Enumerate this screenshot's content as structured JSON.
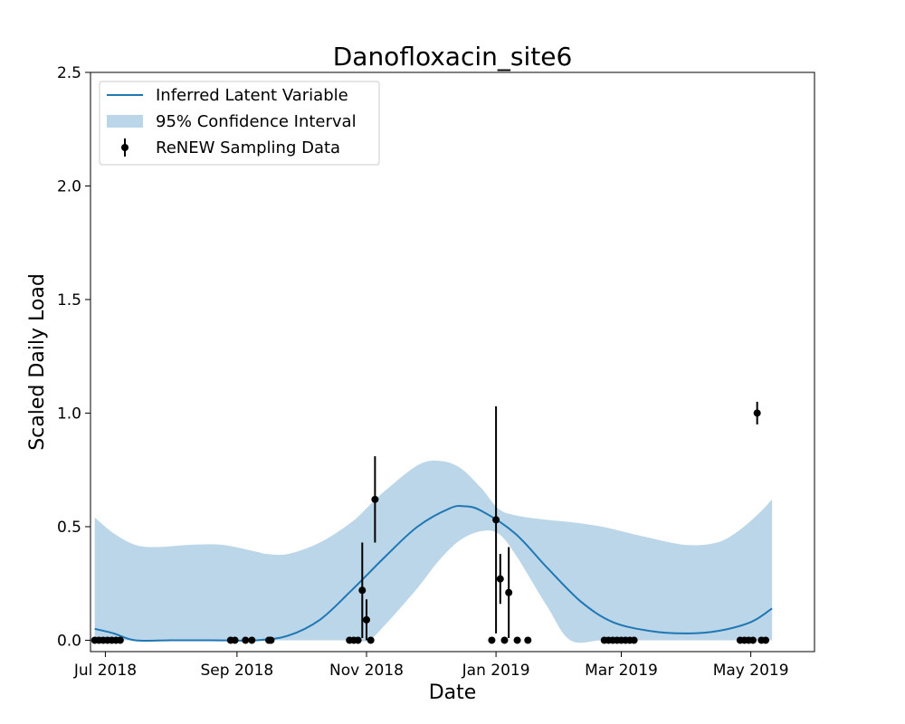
{
  "chart_data": {
    "type": "line",
    "title": "Danofloxacin_site6",
    "xlabel": "Date",
    "ylabel": "Scaled Daily Load",
    "ylim": [
      0,
      2.5
    ],
    "xlim": [
      "2018-06-24",
      "2019-05-31"
    ],
    "x_ticks": [
      {
        "date": "2018-07-01",
        "label": "Jul 2018"
      },
      {
        "date": "2018-09-01",
        "label": "Sep 2018"
      },
      {
        "date": "2018-11-01",
        "label": "Nov 2018"
      },
      {
        "date": "2019-01-01",
        "label": "Jan 2019"
      },
      {
        "date": "2019-03-01",
        "label": "Mar 2019"
      },
      {
        "date": "2019-05-01",
        "label": "May 2019"
      }
    ],
    "y_ticks": [
      {
        "value": 0.0,
        "label": "0.0"
      },
      {
        "value": 0.5,
        "label": "0.5"
      },
      {
        "value": 1.0,
        "label": "1.0"
      },
      {
        "value": 1.5,
        "label": "1.5"
      },
      {
        "value": 2.0,
        "label": "2.0"
      },
      {
        "value": 2.5,
        "label": "2.5"
      }
    ],
    "grid": false,
    "legend_position": "top-left",
    "colors": {
      "line": "#1f77b4",
      "band": "#1f77b4",
      "points": "#000000"
    },
    "series": [
      {
        "name": "Inferred Latent Variable",
        "kind": "line",
        "points": [
          {
            "x": "2018-06-26",
            "y": 0.05
          },
          {
            "x": "2018-07-05",
            "y": 0.03
          },
          {
            "x": "2018-07-15",
            "y": 0.0
          },
          {
            "x": "2018-08-01",
            "y": 0.0
          },
          {
            "x": "2018-08-20",
            "y": 0.0
          },
          {
            "x": "2018-09-10",
            "y": 0.0
          },
          {
            "x": "2018-09-25",
            "y": 0.02
          },
          {
            "x": "2018-10-10",
            "y": 0.09
          },
          {
            "x": "2018-10-25",
            "y": 0.22
          },
          {
            "x": "2018-11-10",
            "y": 0.37
          },
          {
            "x": "2018-11-25",
            "y": 0.5
          },
          {
            "x": "2018-12-10",
            "y": 0.58
          },
          {
            "x": "2018-12-17",
            "y": 0.59
          },
          {
            "x": "2018-12-25",
            "y": 0.57
          },
          {
            "x": "2019-01-10",
            "y": 0.47
          },
          {
            "x": "2019-01-25",
            "y": 0.32
          },
          {
            "x": "2019-02-10",
            "y": 0.17
          },
          {
            "x": "2019-02-25",
            "y": 0.08
          },
          {
            "x": "2019-03-15",
            "y": 0.04
          },
          {
            "x": "2019-03-31",
            "y": 0.03
          },
          {
            "x": "2019-04-15",
            "y": 0.04
          },
          {
            "x": "2019-05-01",
            "y": 0.08
          },
          {
            "x": "2019-05-11",
            "y": 0.14
          }
        ]
      },
      {
        "name": "95% Confidence Interval",
        "kind": "band",
        "points": [
          {
            "x": "2018-06-26",
            "lower": 0.0,
            "upper": 0.54
          },
          {
            "x": "2018-07-05",
            "lower": 0.0,
            "upper": 0.47
          },
          {
            "x": "2018-07-15",
            "lower": 0.0,
            "upper": 0.42
          },
          {
            "x": "2018-07-25",
            "lower": 0.0,
            "upper": 0.41
          },
          {
            "x": "2018-08-10",
            "lower": 0.0,
            "upper": 0.42
          },
          {
            "x": "2018-08-25",
            "lower": 0.0,
            "upper": 0.42
          },
          {
            "x": "2018-09-10",
            "lower": 0.0,
            "upper": 0.39
          },
          {
            "x": "2018-09-15",
            "lower": 0.0,
            "upper": 0.38
          },
          {
            "x": "2018-09-25",
            "lower": 0.0,
            "upper": 0.38
          },
          {
            "x": "2018-10-10",
            "lower": 0.0,
            "upper": 0.43
          },
          {
            "x": "2018-10-25",
            "lower": 0.0,
            "upper": 0.52
          },
          {
            "x": "2018-11-02",
            "lower": 0.0,
            "upper": 0.59
          },
          {
            "x": "2018-11-10",
            "lower": 0.07,
            "upper": 0.66
          },
          {
            "x": "2018-11-25",
            "lower": 0.23,
            "upper": 0.77
          },
          {
            "x": "2018-12-05",
            "lower": 0.35,
            "upper": 0.79
          },
          {
            "x": "2018-12-15",
            "lower": 0.44,
            "upper": 0.76
          },
          {
            "x": "2018-12-25",
            "lower": 0.48,
            "upper": 0.67
          },
          {
            "x": "2019-01-02",
            "lower": 0.47,
            "upper": 0.58
          },
          {
            "x": "2019-01-10",
            "lower": 0.38,
            "upper": 0.55
          },
          {
            "x": "2019-01-25",
            "lower": 0.15,
            "upper": 0.53
          },
          {
            "x": "2019-02-05",
            "lower": 0.0,
            "upper": 0.52
          },
          {
            "x": "2019-02-20",
            "lower": 0.0,
            "upper": 0.5
          },
          {
            "x": "2019-03-10",
            "lower": 0.0,
            "upper": 0.46
          },
          {
            "x": "2019-03-31",
            "lower": 0.0,
            "upper": 0.42
          },
          {
            "x": "2019-04-15",
            "lower": 0.0,
            "upper": 0.43
          },
          {
            "x": "2019-04-25",
            "lower": 0.0,
            "upper": 0.48
          },
          {
            "x": "2019-05-05",
            "lower": 0.0,
            "upper": 0.56
          },
          {
            "x": "2019-05-11",
            "lower": 0.0,
            "upper": 0.62
          }
        ]
      },
      {
        "name": "ReNEW Sampling Data",
        "kind": "errorbar",
        "points": [
          {
            "x": "2018-06-26",
            "y": 0.0
          },
          {
            "x": "2018-06-28",
            "y": 0.0
          },
          {
            "x": "2018-06-30",
            "y": 0.0
          },
          {
            "x": "2018-07-02",
            "y": 0.0
          },
          {
            "x": "2018-07-04",
            "y": 0.0
          },
          {
            "x": "2018-07-06",
            "y": 0.0
          },
          {
            "x": "2018-07-08",
            "y": 0.0
          },
          {
            "x": "2018-08-29",
            "y": 0.0
          },
          {
            "x": "2018-08-31",
            "y": 0.0
          },
          {
            "x": "2018-09-05",
            "y": 0.0
          },
          {
            "x": "2018-09-08",
            "y": 0.0
          },
          {
            "x": "2018-09-16",
            "y": 0.0
          },
          {
            "x": "2018-09-17",
            "y": 0.0
          },
          {
            "x": "2018-10-24",
            "y": 0.0
          },
          {
            "x": "2018-10-26",
            "y": 0.0
          },
          {
            "x": "2018-10-28",
            "y": 0.0
          },
          {
            "x": "2018-10-30",
            "y": 0.22,
            "ylo": 0.01,
            "yhi": 0.43
          },
          {
            "x": "2018-11-01",
            "y": 0.09,
            "ylo": 0.0,
            "yhi": 0.18
          },
          {
            "x": "2018-11-03",
            "y": 0.0
          },
          {
            "x": "2018-11-05",
            "y": 0.62,
            "ylo": 0.43,
            "yhi": 0.81
          },
          {
            "x": "2018-12-30",
            "y": 0.0
          },
          {
            "x": "2019-01-01",
            "y": 0.53,
            "ylo": 0.03,
            "yhi": 1.03
          },
          {
            "x": "2019-01-03",
            "y": 0.27,
            "ylo": 0.16,
            "yhi": 0.38
          },
          {
            "x": "2019-01-05",
            "y": 0.0
          },
          {
            "x": "2019-01-07",
            "y": 0.21,
            "ylo": 0.01,
            "yhi": 0.41
          },
          {
            "x": "2019-01-11",
            "y": 0.0
          },
          {
            "x": "2019-01-16",
            "y": 0.0
          },
          {
            "x": "2019-02-21",
            "y": 0.0
          },
          {
            "x": "2019-02-23",
            "y": 0.0
          },
          {
            "x": "2019-02-25",
            "y": 0.0
          },
          {
            "x": "2019-02-27",
            "y": 0.0
          },
          {
            "x": "2019-03-01",
            "y": 0.0
          },
          {
            "x": "2019-03-03",
            "y": 0.0
          },
          {
            "x": "2019-03-05",
            "y": 0.0
          },
          {
            "x": "2019-03-07",
            "y": 0.0
          },
          {
            "x": "2019-04-26",
            "y": 0.0
          },
          {
            "x": "2019-04-28",
            "y": 0.0
          },
          {
            "x": "2019-04-30",
            "y": 0.0
          },
          {
            "x": "2019-05-02",
            "y": 0.0
          },
          {
            "x": "2019-05-04",
            "y": 1.0,
            "ylo": 0.95,
            "yhi": 1.05
          },
          {
            "x": "2019-05-06",
            "y": 0.0
          },
          {
            "x": "2019-05-08",
            "y": 0.0
          }
        ]
      }
    ]
  }
}
